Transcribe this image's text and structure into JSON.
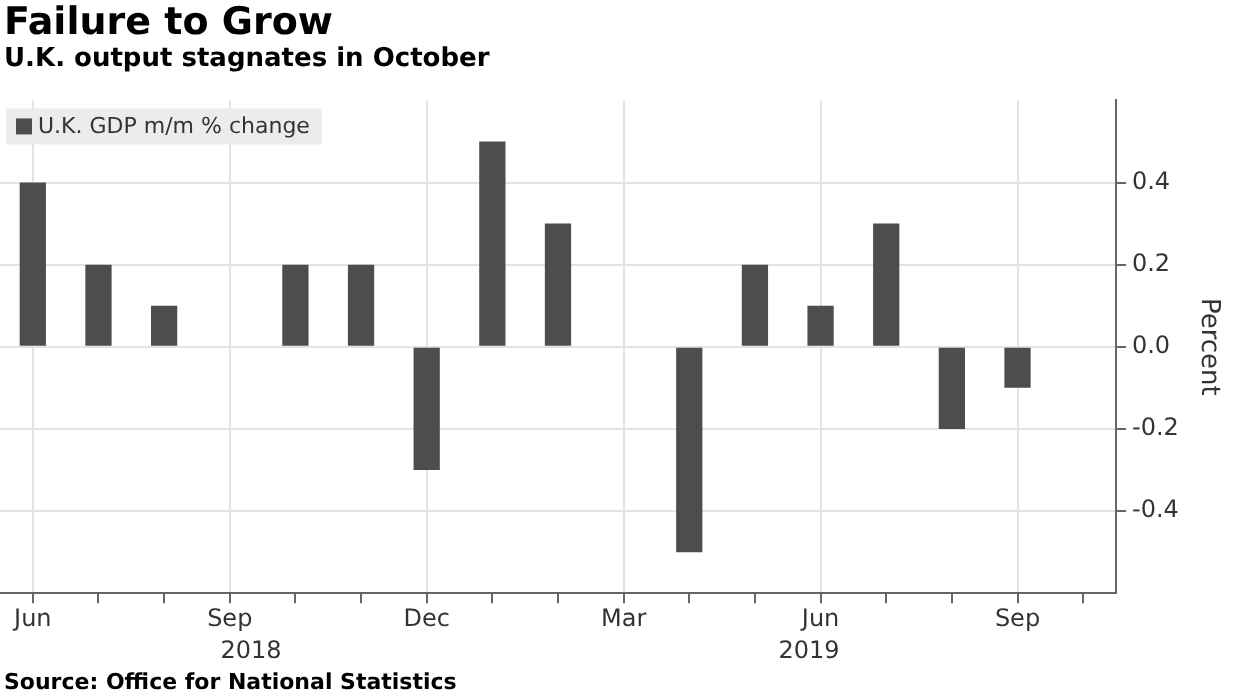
{
  "chart_data": {
    "type": "bar",
    "title": "Failure to Grow",
    "subtitle": "U.K. output stagnates in October",
    "ylabel": "Percent",
    "categories": [
      "Jun",
      null,
      null,
      "Sep",
      null,
      null,
      "Dec",
      null,
      null,
      "Mar",
      null,
      null,
      "Jun",
      null,
      null,
      "Sep",
      null
    ],
    "series": [
      {
        "name": "U.K. GDP m/m % change",
        "color": "#4d4d4d",
        "values": [
          0.4,
          0.2,
          0.1,
          0.0,
          0.2,
          0.2,
          -0.3,
          0.5,
          0.3,
          0.0,
          -0.5,
          0.2,
          0.1,
          0.3,
          -0.2,
          -0.1,
          0.0
        ]
      }
    ],
    "ylim": [
      -0.6,
      0.6
    ],
    "yticks": [
      {
        "value": 0.4,
        "label": "0.4"
      },
      {
        "value": 0.2,
        "label": "0.2"
      },
      {
        "value": 0,
        "label": "0.0"
      },
      {
        "value": -0.2,
        "label": "-0.2"
      },
      {
        "value": -0.4,
        "label": "-0.4"
      }
    ],
    "grid": true,
    "legend": "top left",
    "annotations": [
      "2018",
      "2019",
      "Source: Office for National Statistics"
    ]
  }
}
